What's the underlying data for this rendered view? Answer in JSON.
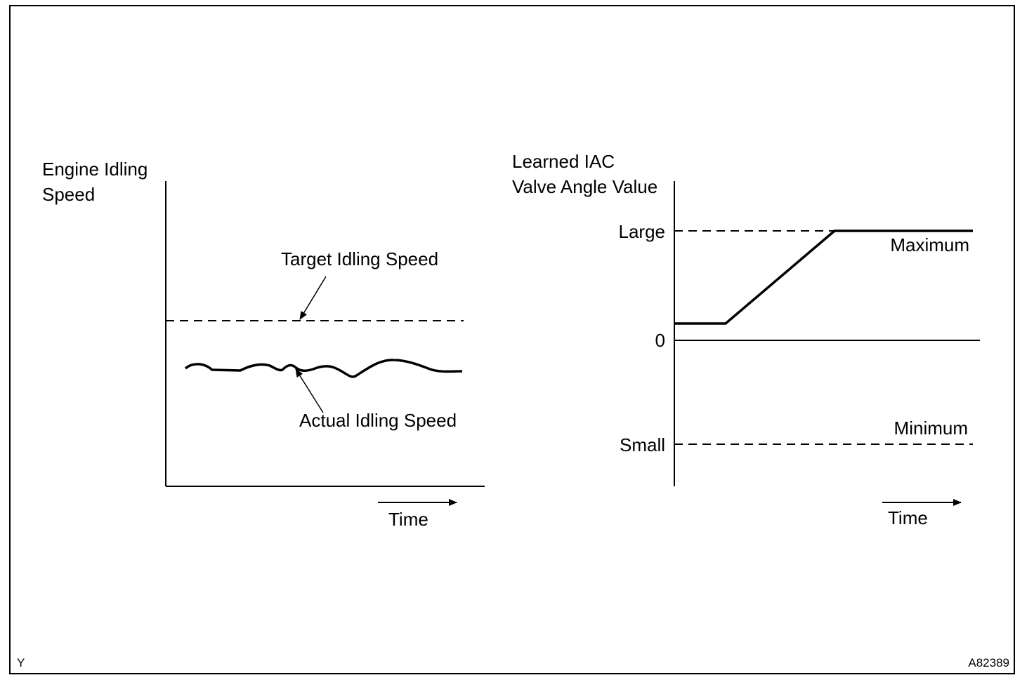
{
  "figure": {
    "corner_mark": "Y",
    "figure_id": "A82389"
  },
  "left_graph": {
    "y_axis_label_lines": [
      "Engine Idling",
      "Speed"
    ],
    "x_axis_label": "Time",
    "target_callout": "Target Idling Speed",
    "actual_callout": "Actual Idling Speed"
  },
  "right_graph": {
    "y_axis_label_lines": [
      "Learned IAC",
      "Valve Angle Value"
    ],
    "x_axis_label": "Time",
    "tick_large": "Large",
    "tick_zero": "0",
    "tick_small": "Small",
    "max_label": "Maximum",
    "min_label": "Minimum"
  },
  "colors": {
    "ink": "#000000",
    "background": "#ffffff"
  }
}
